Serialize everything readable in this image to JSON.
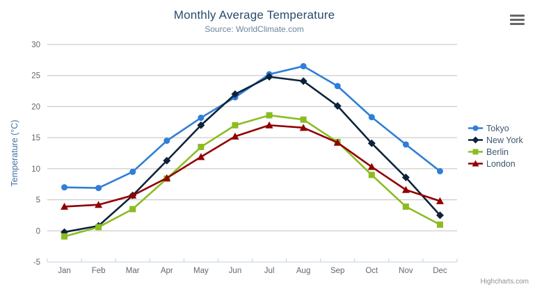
{
  "header": {
    "title": "Monthly Average Temperature",
    "subtitle": "Source: WorldClimate.com"
  },
  "credits_label": "Highcharts.com",
  "icons": {
    "menu": "hamburger-icon"
  },
  "colors": {
    "title": "#274b6d",
    "subtitle": "#6d869f",
    "axis_label": "#666666",
    "axis_title": "#4572a7",
    "grid": "#c0c0c0",
    "axis_line": "#c0d0e0",
    "legend_text": "#3e576f",
    "credits": "#909090",
    "menu_icon": "#666666",
    "background": "#ffffff"
  },
  "chart_data": {
    "type": "line",
    "title": "Monthly Average Temperature",
    "subtitle": "Source: WorldClimate.com",
    "categories": [
      "Jan",
      "Feb",
      "Mar",
      "Apr",
      "May",
      "Jun",
      "Jul",
      "Aug",
      "Sep",
      "Oct",
      "Nov",
      "Dec"
    ],
    "xlabel": "",
    "ylabel": "Temperature (°C)",
    "ylim": [
      -5,
      30
    ],
    "yticks": [
      -5,
      0,
      5,
      10,
      15,
      20,
      25,
      30
    ],
    "grid": true,
    "legend_position": "right",
    "series": [
      {
        "name": "Tokyo",
        "color": "#2f7ed8",
        "marker": "circle",
        "values": [
          7.0,
          6.9,
          9.5,
          14.5,
          18.2,
          21.5,
          25.2,
          26.5,
          23.3,
          18.3,
          13.9,
          9.6
        ]
      },
      {
        "name": "New York",
        "color": "#0d233a",
        "marker": "diamond",
        "values": [
          -0.2,
          0.8,
          5.7,
          11.3,
          17.0,
          22.0,
          24.8,
          24.1,
          20.1,
          14.1,
          8.6,
          2.5
        ]
      },
      {
        "name": "Berlin",
        "color": "#8bbc21",
        "marker": "square",
        "values": [
          -0.9,
          0.6,
          3.5,
          8.4,
          13.5,
          17.0,
          18.6,
          17.9,
          14.3,
          9.0,
          3.9,
          1.0
        ]
      },
      {
        "name": "London",
        "color": "#910000",
        "marker": "triangle",
        "values": [
          3.9,
          4.2,
          5.7,
          8.5,
          11.9,
          15.2,
          17.0,
          16.6,
          14.2,
          10.3,
          6.6,
          4.8
        ]
      }
    ]
  }
}
